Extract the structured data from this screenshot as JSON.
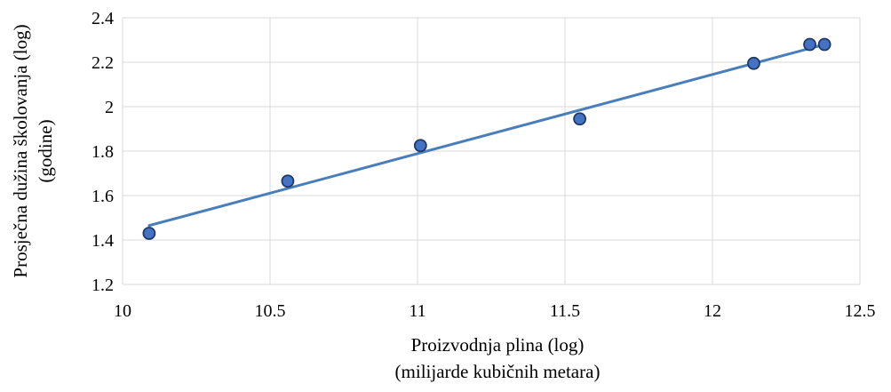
{
  "chart_data": {
    "type": "scatter",
    "title": "",
    "xlabel": [
      "Proizvodnja plina (log)",
      "(milijarde kubičnih metara)"
    ],
    "ylabel": [
      "Prosječna dužina školovanja (log)",
      "(godine)"
    ],
    "xlim": [
      10,
      12.5
    ],
    "ylim": [
      1.2,
      2.4
    ],
    "xticks": [
      "10",
      "10.5",
      "11",
      "11.5",
      "12",
      "12.5"
    ],
    "yticks": [
      "1.2",
      "1.4",
      "1.6",
      "1.8",
      "2",
      "2.2",
      "2.4"
    ],
    "grid": true,
    "legend": "none",
    "series": [
      {
        "points": [
          {
            "x": 10.09,
            "y": 1.43
          },
          {
            "x": 10.56,
            "y": 1.665
          },
          {
            "x": 11.01,
            "y": 1.825
          },
          {
            "x": 11.55,
            "y": 1.945
          },
          {
            "x": 12.14,
            "y": 2.195
          },
          {
            "x": 12.33,
            "y": 2.28
          },
          {
            "x": 12.38,
            "y": 2.28
          }
        ],
        "color": "#4472c4"
      }
    ],
    "trendline": {
      "type": "linear",
      "from": {
        "x": 10.09,
        "y": 1.465
      },
      "to": {
        "x": 12.38,
        "y": 2.28
      },
      "color": "#4a7ebb"
    }
  }
}
